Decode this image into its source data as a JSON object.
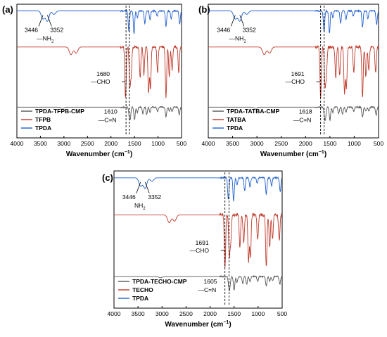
{
  "chart_data": [
    {
      "panel": "(a)",
      "type": "line",
      "xlabel": "Wavenumber (cm⁻¹)",
      "xlim": [
        4000,
        500
      ],
      "xticks": [
        4000,
        3500,
        3000,
        2500,
        2000,
        1500,
        1000,
        500
      ],
      "series": [
        {
          "name": "TPDA-TFPB-CMP",
          "color": "#555555"
        },
        {
          "name": "TFPB",
          "color": "#c0392b"
        },
        {
          "name": "TPDA",
          "color": "#1f5fcf"
        }
      ],
      "annotations": {
        "nh": {
          "labels": [
            "3446",
            "3352"
          ],
          "group": "—NH2"
        },
        "cho": {
          "value": "1680",
          "group": "—CHO"
        },
        "cn": {
          "value": "1610",
          "group": "—C=N"
        }
      },
      "dashed_lines_cm": [
        1680,
        1610
      ]
    },
    {
      "panel": "(b)",
      "type": "line",
      "xlabel": "Wavenumber (cm⁻¹)",
      "xlim": [
        4000,
        500
      ],
      "xticks": [
        4000,
        3500,
        3000,
        2500,
        2000,
        1500,
        1000,
        500
      ],
      "series": [
        {
          "name": "TPDA-TATBA-CMP",
          "color": "#555555"
        },
        {
          "name": "TATBA",
          "color": "#c0392b"
        },
        {
          "name": "TPDA",
          "color": "#1f5fcf"
        }
      ],
      "annotations": {
        "nh": {
          "labels": [
            "3446",
            "3352"
          ],
          "group": "—NH2"
        },
        "cho": {
          "value": "1691",
          "group": "—CHO"
        },
        "cn": {
          "value": "1618",
          "group": "—C=N"
        }
      },
      "dashed_lines_cm": [
        1691,
        1618
      ]
    },
    {
      "panel": "(c)",
      "type": "line",
      "xlabel": "Wavenumber (cm⁻¹)",
      "xlim": [
        4000,
        500
      ],
      "xticks": [
        4000,
        3500,
        3000,
        2500,
        2000,
        1500,
        1000,
        500
      ],
      "series": [
        {
          "name": "TPDA-TECHO-CMP",
          "color": "#555555"
        },
        {
          "name": "TECHO",
          "color": "#c0392b"
        },
        {
          "name": "TPDA",
          "color": "#1f5fcf"
        }
      ],
      "annotations": {
        "nh": {
          "labels": [
            "3446",
            "3352"
          ],
          "group": "NH2"
        },
        "cho": {
          "value": "1691",
          "group": "—CHO"
        },
        "cn": {
          "value": "1605",
          "group": "—C=N"
        }
      },
      "dashed_lines_cm": [
        1691,
        1605
      ]
    }
  ]
}
